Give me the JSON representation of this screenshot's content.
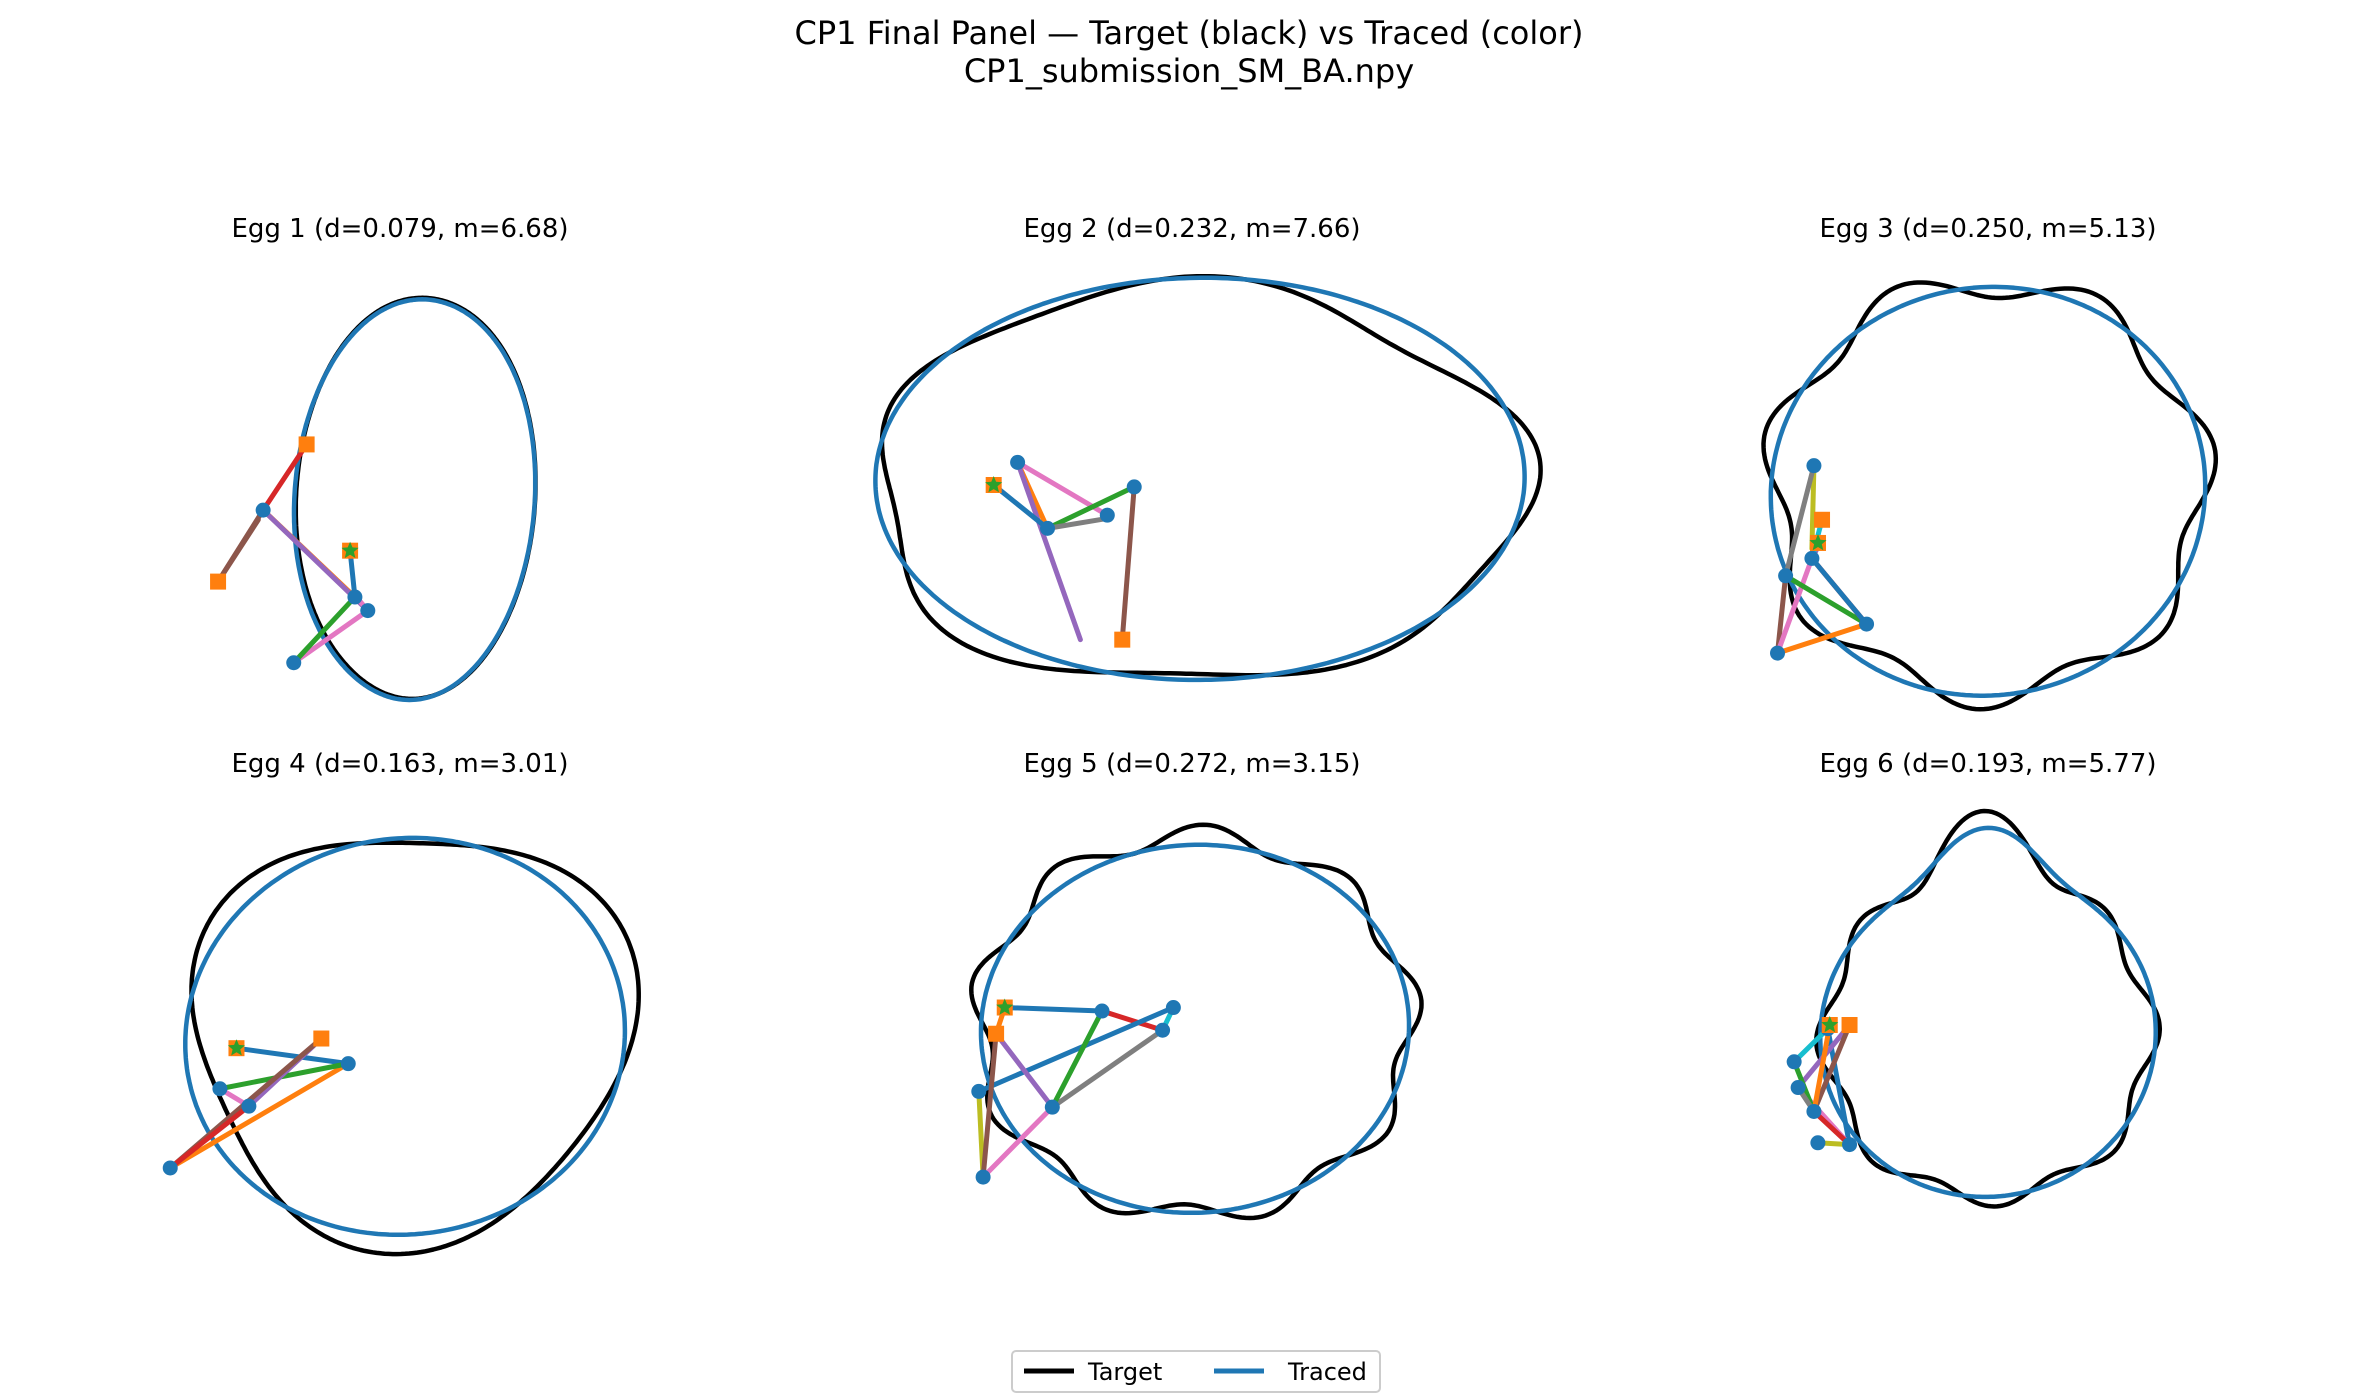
{
  "figure": {
    "title_line1": "CP1 Final Panel — Target (black) vs Traced (color)",
    "title_line2": "CP1_submission_SM_BA.npy"
  },
  "legend": {
    "placement": "bottom-center",
    "entries": [
      {
        "label": "Target",
        "color": "#000000"
      },
      {
        "label": "Traced",
        "color": "#1f77b4"
      }
    ]
  },
  "colors": {
    "target": "#000000",
    "traced": "#1f77b4",
    "square_marker": "#ff7f0e",
    "point_marker": "#1f77b4",
    "star_marker": "#2ca02c",
    "segment_cycle": [
      "#ff7f0e",
      "#2ca02c",
      "#d62728",
      "#9467bd",
      "#8c564b",
      "#e377c2",
      "#7f7f7f",
      "#bcbd22",
      "#17becf",
      "#1f77b4"
    ]
  },
  "chart_data": [
    {
      "type": "line",
      "title": "Egg 1  (d=0.079, m=6.68)",
      "d": 0.079,
      "m": 6.68,
      "target": {
        "cx": 0.0,
        "cy": 0.0,
        "rx": 1.0,
        "ry": 1.0,
        "rot": 0.0,
        "wave": [
          [
            2,
            0.035,
            1.9
          ]
        ],
        "peak": {
          "a": 0.33,
          "ang": -0.38,
          "w": 0.85
        }
      },
      "traced": {
        "cx": 0.0,
        "cy": 0.0,
        "rx": 1.0,
        "ry": 1.0,
        "rot": 0.0,
        "wave": [
          [
            2,
            0.03,
            1.9
          ]
        ],
        "peak": {
          "a": 0.32,
          "ang": -0.45,
          "w": 0.85
        }
      },
      "segments": [
        {
          "from": [
            -0.88,
            -0.18
          ],
          "to": [
            -1.13,
            -0.5
          ],
          "color": "#8c564b"
        },
        {
          "from": [
            -1.13,
            -0.5
          ],
          "to": [
            -0.85,
            -0.13
          ],
          "color": "#8c564b"
        },
        {
          "from": [
            -0.85,
            -0.13
          ],
          "to": [
            -0.58,
            0.21
          ],
          "color": "#d62728"
        },
        {
          "from": [
            -0.85,
            -0.13
          ],
          "to": [
            -0.28,
            -0.58
          ],
          "color": "#ff7f0e"
        },
        {
          "from": [
            -0.85,
            -0.13
          ],
          "to": [
            -0.2,
            -0.65
          ],
          "color": "#9467bd"
        },
        {
          "from": [
            -0.2,
            -0.65
          ],
          "to": [
            -0.28,
            -0.57
          ],
          "color": "#e377c2"
        },
        {
          "from": [
            -0.2,
            -0.65
          ],
          "to": [
            -0.66,
            -0.92
          ],
          "color": "#e377c2"
        },
        {
          "from": [
            -0.66,
            -0.92
          ],
          "to": [
            -0.28,
            -0.58
          ],
          "color": "#2ca02c"
        },
        {
          "from": [
            -0.28,
            -0.58
          ],
          "to": [
            -0.31,
            -0.34
          ],
          "color": "#1f77b4"
        }
      ],
      "squares": [
        [
          -0.58,
          0.21
        ],
        [
          -1.13,
          -0.5
        ],
        [
          -0.31,
          -0.34
        ]
      ],
      "points": [
        [
          -0.85,
          -0.13
        ],
        [
          -0.28,
          -0.58
        ],
        [
          -0.2,
          -0.65
        ],
        [
          -0.66,
          -0.92
        ]
      ],
      "stars": [
        [
          -0.31,
          -0.34
        ]
      ]
    },
    {
      "type": "line",
      "title": "Egg 2  (d=0.232, m=7.66)",
      "d": 0.232,
      "m": 7.66,
      "target": {
        "cx": 0.0,
        "cy": 0.0,
        "rx": 1.0,
        "ry": 1.0,
        "rot": 0.0,
        "wave": [
          [
            5,
            0.045,
            0.6
          ],
          [
            3,
            0.03,
            2.0
          ]
        ],
        "peak": {
          "a": 0.0,
          "ang": 0.0,
          "w": 1.0
        }
      },
      "traced": {
        "cx": 0.0,
        "cy": 0.0,
        "rx": 1.0,
        "ry": 1.0,
        "rot": 0.0,
        "wave": [
          [
            2,
            0.02,
            1.3
          ]
        ],
        "peak": {
          "a": 0.0,
          "ang": 0.0,
          "w": 1.0
        }
      },
      "segments": [
        {
          "from": [
            -0.61,
            0.12
          ],
          "to": [
            -0.51,
            -0.23
          ],
          "color": "#ff7f0e"
        },
        {
          "from": [
            -0.61,
            0.12
          ],
          "to": [
            -0.31,
            -0.16
          ],
          "color": "#e377c2"
        },
        {
          "from": [
            -0.61,
            0.12
          ],
          "to": [
            -0.4,
            -0.82
          ],
          "color": "#9467bd"
        },
        {
          "from": [
            -0.51,
            -0.23
          ],
          "to": [
            -0.22,
            -0.01
          ],
          "color": "#2ca02c"
        },
        {
          "from": [
            -0.51,
            -0.23
          ],
          "to": [
            -0.32,
            -0.18
          ],
          "color": "#7f7f7f"
        },
        {
          "from": [
            -0.22,
            -0.01
          ],
          "to": [
            -0.26,
            -0.82
          ],
          "color": "#8c564b"
        },
        {
          "from": [
            -0.69,
            0.0
          ],
          "to": [
            -0.51,
            -0.23
          ],
          "color": "#1f77b4"
        }
      ],
      "squares": [
        [
          -0.69,
          0.0
        ],
        [
          -0.26,
          -0.82
        ]
      ],
      "points": [
        [
          -0.61,
          0.12
        ],
        [
          -0.51,
          -0.23
        ],
        [
          -0.31,
          -0.16
        ],
        [
          -0.22,
          -0.01
        ]
      ],
      "stars": [
        [
          -0.69,
          0.0
        ]
      ]
    },
    {
      "type": "line",
      "title": "Egg 3  (d=0.250, m=5.13)",
      "d": 0.25,
      "m": 5.13,
      "target": {
        "cx": 0.0,
        "cy": 0.0,
        "rx": 1.0,
        "ry": 1.0,
        "rot": 0.0,
        "wave": [
          [
            7,
            0.07,
            0.3
          ]
        ],
        "peak": {
          "a": 0.0,
          "ang": 0.0,
          "w": 1.0
        }
      },
      "traced": {
        "cx": 0.0,
        "cy": 0.0,
        "rx": 1.0,
        "ry": 1.0,
        "rot": 0.0,
        "wave": [
          [
            2,
            0.015,
            0.5
          ]
        ],
        "peak": {
          "a": 0.0,
          "ang": 0.0,
          "w": 1.0
        }
      },
      "segments": [
        {
          "from": [
            -0.86,
            0.1
          ],
          "to": [
            -0.87,
            -0.33
          ],
          "color": "#bcbd22"
        },
        {
          "from": [
            -0.86,
            0.1
          ],
          "to": [
            -1.0,
            -0.47
          ],
          "color": "#7f7f7f"
        },
        {
          "from": [
            -1.0,
            -0.47
          ],
          "to": [
            -1.04,
            -0.87
          ],
          "color": "#8c564b"
        },
        {
          "from": [
            -1.04,
            -0.87
          ],
          "to": [
            -0.87,
            -0.38
          ],
          "color": "#e377c2"
        },
        {
          "from": [
            -1.04,
            -0.87
          ],
          "to": [
            -0.6,
            -0.72
          ],
          "color": "#ff7f0e"
        },
        {
          "from": [
            -1.0,
            -0.47
          ],
          "to": [
            -0.6,
            -0.72
          ],
          "color": "#2ca02c"
        },
        {
          "from": [
            -0.87,
            -0.38
          ],
          "to": [
            -0.6,
            -0.72
          ],
          "color": "#d62728"
        },
        {
          "from": [
            -0.87,
            -0.38
          ],
          "to": [
            -0.82,
            -0.28
          ],
          "color": "#9467bd"
        },
        {
          "from": [
            -0.82,
            -0.18
          ],
          "to": [
            -0.87,
            -0.38
          ],
          "color": "#17becf"
        },
        {
          "from": [
            -0.87,
            -0.38
          ],
          "to": [
            -0.6,
            -0.72
          ],
          "color": "#1f77b4"
        }
      ],
      "squares": [
        [
          -0.82,
          -0.18
        ],
        [
          -0.84,
          -0.3
        ]
      ],
      "points": [
        [
          -0.86,
          0.1
        ],
        [
          -1.0,
          -0.47
        ],
        [
          -0.87,
          -0.38
        ],
        [
          -1.04,
          -0.87
        ],
        [
          -0.6,
          -0.72
        ]
      ],
      "stars": [
        [
          -0.84,
          -0.3
        ]
      ]
    },
    {
      "type": "line",
      "title": "Egg 4  (d=0.163, m=3.01)",
      "d": 0.163,
      "m": 3.01,
      "target": {
        "cx": 0.0,
        "cy": 0.0,
        "rx": 1.0,
        "ry": 1.0,
        "rot": 0.0,
        "wave": [
          [
            3,
            0.08,
            0.2
          ]
        ],
        "peak": {
          "a": 0.12,
          "ang": -0.3,
          "w": 0.9
        }
      },
      "traced": {
        "cx": 0.0,
        "cy": 0.0,
        "rx": 1.0,
        "ry": 1.0,
        "rot": 0.0,
        "wave": [
          [
            2,
            0.02,
            1.0
          ]
        ],
        "peak": {
          "a": 0.1,
          "ang": -0.35,
          "w": 0.9
        }
      },
      "segments": [
        {
          "from": [
            -0.79,
            -0.12
          ],
          "to": [
            -0.25,
            -0.2
          ],
          "color": "#1f77b4"
        },
        {
          "from": [
            -0.25,
            -0.2
          ],
          "to": [
            -1.11,
            -0.74
          ],
          "color": "#ff7f0e"
        },
        {
          "from": [
            -0.87,
            -0.33
          ],
          "to": [
            -0.25,
            -0.2
          ],
          "color": "#2ca02c"
        },
        {
          "from": [
            -0.87,
            -0.33
          ],
          "to": [
            -0.73,
            -0.42
          ],
          "color": "#e377c2"
        },
        {
          "from": [
            -0.73,
            -0.42
          ],
          "to": [
            -0.38,
            -0.07
          ],
          "color": "#9467bd"
        },
        {
          "from": [
            -1.11,
            -0.74
          ],
          "to": [
            -0.38,
            -0.07
          ],
          "color": "#8c564b"
        },
        {
          "from": [
            -1.11,
            -0.74
          ],
          "to": [
            -0.73,
            -0.42
          ],
          "color": "#d62728"
        }
      ],
      "squares": [
        [
          -0.79,
          -0.12
        ],
        [
          -0.38,
          -0.07
        ]
      ],
      "points": [
        [
          -0.25,
          -0.2
        ],
        [
          -0.87,
          -0.33
        ],
        [
          -0.73,
          -0.42
        ],
        [
          -1.11,
          -0.74
        ]
      ],
      "stars": [
        [
          -0.79,
          -0.12
        ]
      ]
    },
    {
      "type": "line",
      "title": "Egg 5  (d=0.272, m=3.15)",
      "d": 0.272,
      "m": 3.15,
      "target": {
        "cx": 0.0,
        "cy": 0.0,
        "rx": 1.0,
        "ry": 1.0,
        "rot": 0.0,
        "wave": [
          [
            9,
            0.055,
            0.4
          ]
        ],
        "peak": {
          "a": 0.0,
          "ang": 0.0,
          "w": 1.0
        }
      },
      "traced": {
        "cx": 0.0,
        "cy": 0.0,
        "rx": 1.0,
        "ry": 1.0,
        "rot": 0.0,
        "wave": [
          [
            2,
            0.015,
            0.9
          ]
        ],
        "peak": {
          "a": 0.0,
          "ang": 0.0,
          "w": 1.0
        }
      },
      "segments": [
        {
          "from": [
            -0.88,
            0.1
          ],
          "to": [
            -0.92,
            -0.05
          ],
          "color": "#ff7f0e"
        },
        {
          "from": [
            -0.88,
            0.1
          ],
          "to": [
            -0.43,
            0.08
          ],
          "color": "#1f77b4"
        },
        {
          "from": [
            -0.43,
            0.08
          ],
          "to": [
            -0.15,
            -0.03
          ],
          "color": "#d62728"
        },
        {
          "from": [
            -0.15,
            -0.03
          ],
          "to": [
            -0.1,
            0.1
          ],
          "color": "#17becf"
        },
        {
          "from": [
            -0.1,
            0.1
          ],
          "to": [
            -1.0,
            -0.38
          ],
          "color": "#1f77b4"
        },
        {
          "from": [
            -0.15,
            -0.03
          ],
          "to": [
            -0.66,
            -0.47
          ],
          "color": "#7f7f7f"
        },
        {
          "from": [
            -0.43,
            0.08
          ],
          "to": [
            -0.66,
            -0.47
          ],
          "color": "#2ca02c"
        },
        {
          "from": [
            -0.92,
            -0.05
          ],
          "to": [
            -0.66,
            -0.47
          ],
          "color": "#9467bd"
        },
        {
          "from": [
            -0.66,
            -0.47
          ],
          "to": [
            -0.98,
            -0.87
          ],
          "color": "#e377c2"
        },
        {
          "from": [
            -0.98,
            -0.87
          ],
          "to": [
            -1.0,
            -0.38
          ],
          "color": "#bcbd22"
        },
        {
          "from": [
            -0.92,
            -0.05
          ],
          "to": [
            -0.98,
            -0.87
          ],
          "color": "#8c564b"
        }
      ],
      "squares": [
        [
          -0.88,
          0.1
        ],
        [
          -0.92,
          -0.05
        ]
      ],
      "points": [
        [
          -0.43,
          0.08
        ],
        [
          -0.15,
          -0.03
        ],
        [
          -0.1,
          0.1
        ],
        [
          -0.66,
          -0.47
        ],
        [
          -1.0,
          -0.38
        ],
        [
          -0.98,
          -0.87
        ]
      ],
      "stars": [
        [
          -0.88,
          0.1
        ]
      ]
    },
    {
      "type": "line",
      "title": "Egg 6  (d=0.193, m=5.77)",
      "d": 0.193,
      "m": 5.77,
      "target": {
        "cx": 0.0,
        "cy": 0.0,
        "rx": 1.0,
        "ry": 1.0,
        "rot": 0.0,
        "wave": [
          [
            8,
            0.05,
            1.2
          ]
        ],
        "peak": {
          "a": 0.3,
          "ang": 1.5708,
          "w": 0.22
        }
      },
      "traced": {
        "cx": 0.0,
        "cy": 0.0,
        "rx": 1.0,
        "ry": 1.0,
        "rot": 0.0,
        "wave": [
          [
            2,
            0.01,
            0.5
          ]
        ],
        "peak": {
          "a": 0.26,
          "ang": 1.5708,
          "w": 0.22
        }
      },
      "segments": [
        {
          "from": [
            -0.81,
            -0.02
          ],
          "to": [
            -0.98,
            -0.2
          ],
          "color": "#17becf"
        },
        {
          "from": [
            -0.81,
            -0.02
          ],
          "to": [
            -0.7,
            -0.65
          ],
          "color": "#1f77b4"
        },
        {
          "from": [
            -0.7,
            -0.65
          ],
          "to": [
            -0.96,
            -0.34
          ],
          "color": "#e377c2"
        },
        {
          "from": [
            -0.96,
            -0.34
          ],
          "to": [
            -0.7,
            0.0
          ],
          "color": "#9467bd"
        },
        {
          "from": [
            -0.7,
            0.0
          ],
          "to": [
            -0.88,
            -0.47
          ],
          "color": "#8c564b"
        },
        {
          "from": [
            -0.98,
            -0.2
          ],
          "to": [
            -0.88,
            -0.47
          ],
          "color": "#2ca02c"
        },
        {
          "from": [
            -0.88,
            -0.47
          ],
          "to": [
            -0.7,
            -0.65
          ],
          "color": "#d62728"
        },
        {
          "from": [
            -0.86,
            -0.64
          ],
          "to": [
            -0.7,
            -0.65
          ],
          "color": "#bcbd22"
        },
        {
          "from": [
            -0.8,
            0.0
          ],
          "to": [
            -0.88,
            -0.47
          ],
          "color": "#ff7f0e"
        },
        {
          "from": [
            -0.88,
            -0.47
          ],
          "to": [
            -0.96,
            -0.34
          ],
          "color": "#7f7f7f"
        }
      ],
      "squares": [
        [
          -0.7,
          0.0
        ],
        [
          -0.8,
          0.0
        ]
      ],
      "points": [
        [
          -0.81,
          -0.02
        ],
        [
          -0.98,
          -0.2
        ],
        [
          -0.96,
          -0.34
        ],
        [
          -0.88,
          -0.47
        ],
        [
          -0.86,
          -0.64
        ],
        [
          -0.7,
          -0.65
        ]
      ],
      "stars": [
        [
          -0.8,
          0.0
        ]
      ]
    }
  ]
}
